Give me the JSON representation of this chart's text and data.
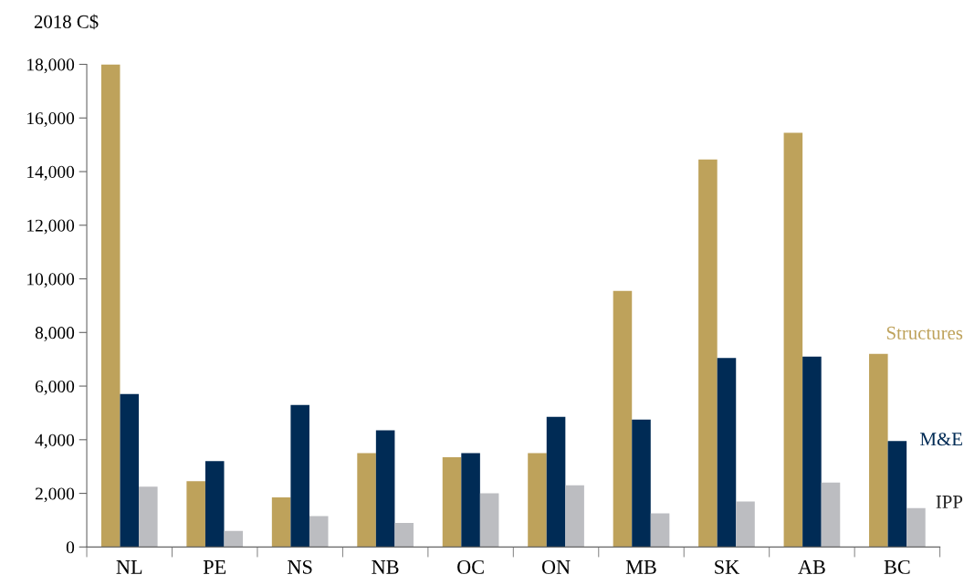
{
  "chart_data": {
    "type": "bar",
    "ylabel": "2018 C$",
    "categories": [
      "NL",
      "PE",
      "NS",
      "NB",
      "OC",
      "ON",
      "MB",
      "SK",
      "AB",
      "BC"
    ],
    "series": [
      {
        "name": "Structures",
        "color": "#bea25b",
        "values": [
          18000,
          2450,
          1850,
          3500,
          3350,
          3500,
          9550,
          14450,
          15450,
          7200
        ]
      },
      {
        "name": "M&E",
        "color": "#002b55",
        "values": [
          5700,
          3200,
          5300,
          4350,
          3500,
          4850,
          4750,
          7050,
          7100,
          3950
        ]
      },
      {
        "name": "IPP",
        "color": "#bcbdc1",
        "values": [
          2250,
          600,
          1150,
          900,
          2000,
          2300,
          1250,
          1700,
          2400,
          1450
        ]
      }
    ],
    "ylim": [
      0,
      18000
    ],
    "yticks": [
      {
        "value": 0,
        "label": "0"
      },
      {
        "value": 2000,
        "label": "2,000"
      },
      {
        "value": 4000,
        "label": "4,000"
      },
      {
        "value": 6000,
        "label": "6,000"
      },
      {
        "value": 8000,
        "label": "8,000"
      },
      {
        "value": 10000,
        "label": "10,000"
      },
      {
        "value": 12000,
        "label": "12,000"
      },
      {
        "value": 14000,
        "label": "14,000"
      },
      {
        "value": 16000,
        "label": "16,000"
      },
      {
        "value": 18000,
        "label": "18,000"
      }
    ],
    "grid": false,
    "legend": false
  }
}
